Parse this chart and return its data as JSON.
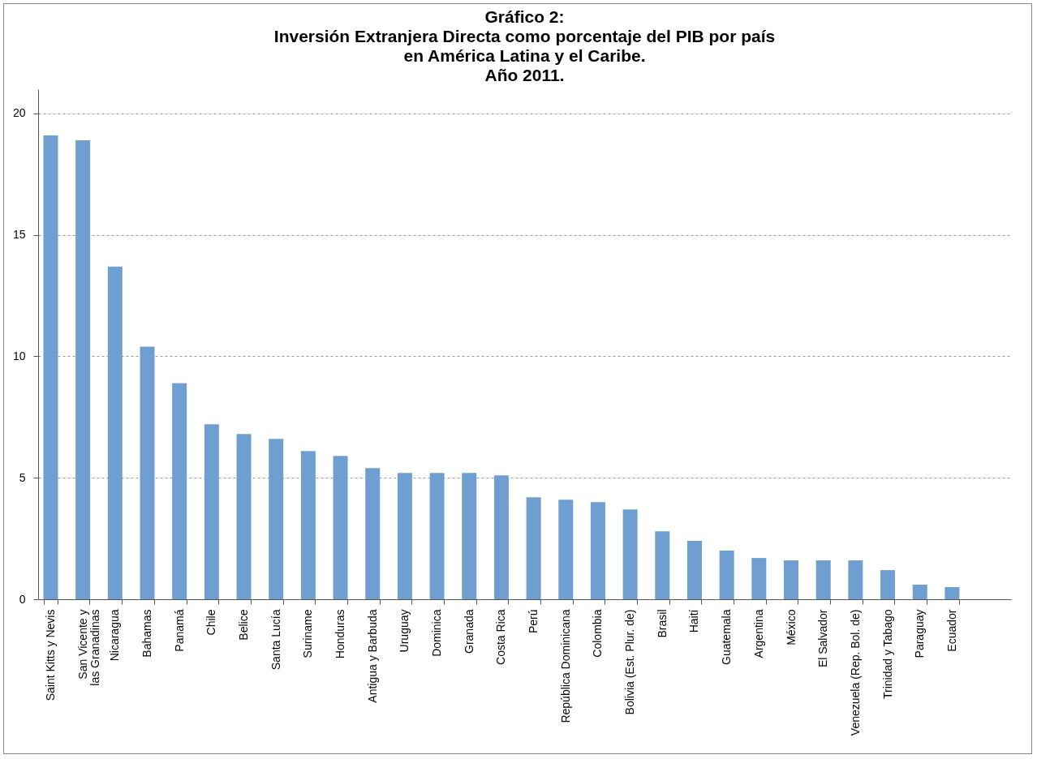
{
  "chart_data": {
    "type": "bar",
    "title": "Gráfico 2:\nInversión Extranjera Directa como porcentaje del PIB por país\nen América Latina y el Caribe.\nAño 2011.",
    "categories": [
      "Saint Kitts y Nevis",
      "San Vicente y\nlas Granadinas",
      "Nicaragua",
      "Bahamas",
      "Panamá",
      "Chile",
      "Belice",
      "Santa Lucía",
      "Suriname",
      "Honduras",
      "Antigua y Barbuda",
      "Uruguay",
      "Dominica",
      "Granada",
      "Costa Rica",
      "Perú",
      "República Dominicana",
      "Colombia",
      "Bolivia (Est. Plur. de)",
      "Brasil",
      "Haití",
      "Guatemala",
      "Argentina",
      "México",
      "El Salvador",
      "Venezuela (Rep. Bol. de)",
      "Trinidad y Tabago",
      "Paraguay",
      "Ecuador"
    ],
    "values": [
      19.1,
      18.9,
      13.7,
      10.4,
      8.9,
      7.2,
      6.8,
      6.6,
      6.1,
      5.9,
      5.4,
      5.2,
      5.2,
      5.2,
      5.1,
      4.2,
      4.1,
      4.0,
      3.7,
      2.8,
      2.4,
      2.0,
      1.7,
      1.6,
      1.6,
      1.6,
      1.2,
      0.6,
      0.5
    ],
    "color": "#6f9fd0",
    "ylim": [
      0,
      21
    ],
    "yticks": [
      0,
      5,
      10,
      15,
      20
    ],
    "grid": "y"
  }
}
